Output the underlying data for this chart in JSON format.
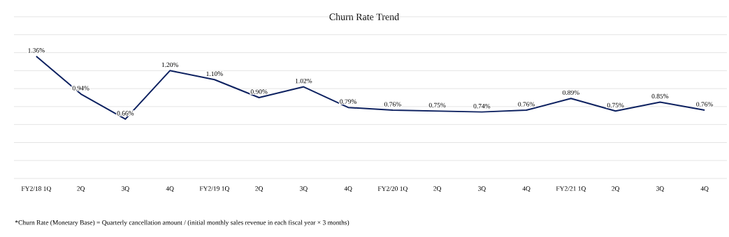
{
  "chart_data": {
    "type": "line",
    "title": "Churn Rate Trend",
    "categories": [
      "FY2/18 1Q",
      "2Q",
      "3Q",
      "4Q",
      "FY2/19 1Q",
      "2Q",
      "3Q",
      "4Q",
      "FY2/20 1Q",
      "2Q",
      "3Q",
      "4Q",
      "FY2/21 1Q",
      "2Q",
      "3Q",
      "4Q"
    ],
    "series": [
      {
        "color": "#0d2160",
        "values": [
          1.36,
          0.94,
          0.66,
          1.2,
          1.1,
          0.9,
          1.02,
          0.79,
          0.76,
          0.75,
          0.74,
          0.76,
          0.89,
          0.75,
          0.85,
          0.76
        ],
        "value_labels": [
          "1.36%",
          "0.94%",
          "0.66%",
          "1.20%",
          "1.10%",
          "0.90%",
          "1.02%",
          "0.79%",
          "0.76%",
          "0.75%",
          "0.74%",
          "0.76%",
          "0.89%",
          "0.75%",
          "0.85%",
          "0.76%"
        ]
      }
    ],
    "ylim": [
      0,
      1.8
    ],
    "yticks": [
      {
        "value": 0,
        "label": null
      },
      {
        "value": 0.2,
        "label": null
      },
      {
        "value": 0.4,
        "label": null
      },
      {
        "value": 0.6,
        "label": null
      },
      {
        "value": 0.8,
        "label": null
      },
      {
        "value": 1.0,
        "label": null
      },
      {
        "value": 1.2,
        "label": null
      },
      {
        "value": 1.4,
        "label": null
      },
      {
        "value": 1.6,
        "label": null
      },
      {
        "value": 1.8,
        "label": null
      }
    ],
    "tick_labels": "x",
    "grid": "y",
    "marker": "none",
    "line_style": "solid",
    "annotations": [
      "*Churn Rate (Monetary Base) = Quarterly cancellation amount / (initial monthly sales revenue in each fiscal year × 3 months)"
    ]
  }
}
